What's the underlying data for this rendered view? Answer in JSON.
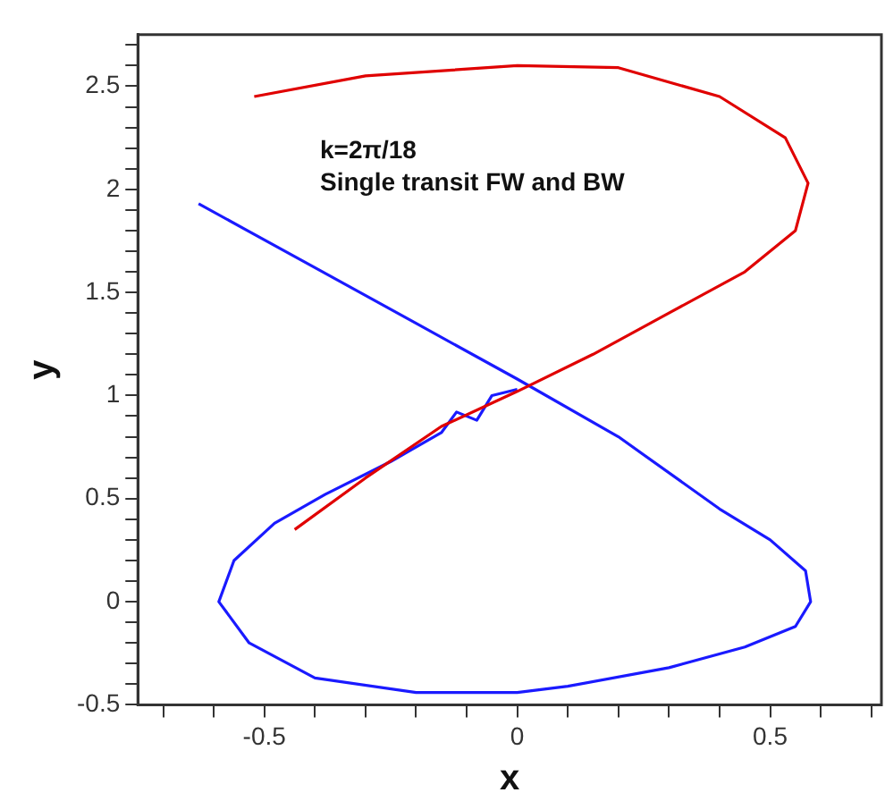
{
  "chart_data": {
    "type": "line",
    "xlabel": "x",
    "ylabel": "y",
    "annotations": [
      "k=2π/18",
      "Single transit FW and BW"
    ],
    "xlim": [
      -0.75,
      0.72
    ],
    "ylim": [
      -0.5,
      2.75
    ],
    "xticks": [
      {
        "value": -0.7,
        "label": null
      },
      {
        "value": -0.6,
        "label": null
      },
      -0.5,
      {
        "value": -0.4,
        "label": null
      },
      {
        "value": -0.3,
        "label": null
      },
      {
        "value": -0.2,
        "label": null
      },
      {
        "value": -0.1,
        "label": null
      },
      0,
      {
        "value": 0.1,
        "label": null
      },
      {
        "value": 0.2,
        "label": null
      },
      {
        "value": 0.3,
        "label": null
      },
      {
        "value": 0.4,
        "label": null
      },
      0.5,
      {
        "value": 0.6,
        "label": null
      },
      {
        "value": 0.7,
        "label": null
      }
    ],
    "yticks": [
      -0.5,
      {
        "value": -0.4,
        "label": null
      },
      {
        "value": -0.3,
        "label": null
      },
      {
        "value": -0.2,
        "label": null
      },
      {
        "value": -0.1,
        "label": null
      },
      0,
      {
        "value": 0.1,
        "label": null
      },
      {
        "value": 0.2,
        "label": null
      },
      {
        "value": 0.3,
        "label": null
      },
      {
        "value": 0.4,
        "label": null
      },
      0.5,
      {
        "value": 0.6,
        "label": null
      },
      {
        "value": 0.7,
        "label": null
      },
      {
        "value": 0.8,
        "label": null
      },
      {
        "value": 0.9,
        "label": null
      },
      1,
      {
        "value": 1.1,
        "label": null
      },
      {
        "value": 1.2,
        "label": null
      },
      {
        "value": 1.3,
        "label": null
      },
      {
        "value": 1.4,
        "label": null
      },
      1.5,
      {
        "value": 1.6,
        "label": null
      },
      {
        "value": 1.7,
        "label": null
      },
      {
        "value": 1.8,
        "label": null
      },
      {
        "value": 1.9,
        "label": null
      },
      2,
      {
        "value": 2.1,
        "label": null
      },
      {
        "value": 2.2,
        "label": null
      },
      {
        "value": 2.3,
        "label": null
      },
      {
        "value": 2.4,
        "label": null
      },
      2.5,
      {
        "value": 2.6,
        "label": null
      },
      {
        "value": 2.7,
        "label": null
      }
    ],
    "grid": false,
    "legend": false,
    "line_style": "solid",
    "marker": "none",
    "series": [
      {
        "color": "#e00000",
        "x": [
          -0.52,
          -0.3,
          0,
          0.2,
          0.4,
          0.53,
          0.575,
          0.55,
          0.45,
          0.3,
          0.15,
          0,
          -0.15,
          -0.3,
          -0.44
        ],
        "values": [
          2.45,
          2.55,
          2.6,
          2.59,
          2.45,
          2.25,
          2.03,
          1.8,
          1.6,
          1.4,
          1.2,
          1.02,
          0.85,
          0.6,
          0.35
        ]
      },
      {
        "color": "#1a1aff",
        "x": [
          -0.63,
          -0.4,
          -0.2,
          0,
          0.2,
          0.4,
          0.5,
          0.57,
          0.58,
          0.55,
          0.45,
          0.3,
          0.1,
          0,
          -0.2,
          -0.4,
          -0.53,
          -0.59,
          -0.56,
          -0.48,
          -0.38,
          -0.25,
          -0.15,
          -0.12,
          -0.08,
          -0.05,
          0
        ],
        "values": [
          1.93,
          1.62,
          1.35,
          1.08,
          0.8,
          0.45,
          0.3,
          0.15,
          0,
          -0.12,
          -0.22,
          -0.32,
          -0.41,
          -0.44,
          -0.44,
          -0.37,
          -0.2,
          0,
          0.2,
          0.38,
          0.52,
          0.68,
          0.82,
          0.92,
          0.88,
          1.0,
          1.03
        ]
      }
    ]
  }
}
